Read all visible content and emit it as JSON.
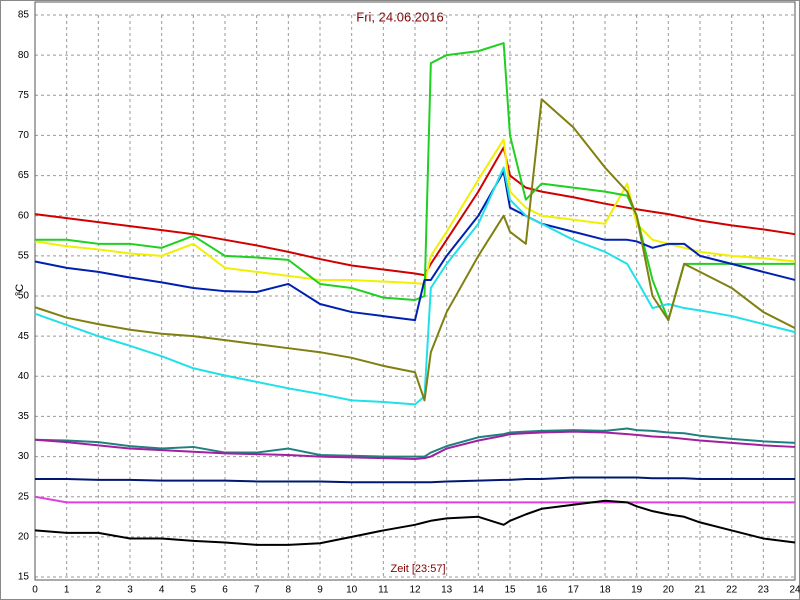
{
  "chart_data": {
    "type": "line",
    "title": "Fri, 24.06.2016",
    "xlabel": "Zeit [23:57]",
    "ylabel": "°C",
    "xlim": [
      0,
      24
    ],
    "ylim": [
      15,
      85
    ],
    "xticks": [
      0,
      1,
      2,
      3,
      4,
      5,
      6,
      7,
      8,
      9,
      10,
      11,
      12,
      13,
      14,
      15,
      16,
      17,
      18,
      19,
      20,
      21,
      22,
      23,
      24
    ],
    "yticks": [
      15,
      20,
      25,
      30,
      35,
      40,
      45,
      50,
      55,
      60,
      65,
      70,
      75,
      80,
      85
    ],
    "grid": true,
    "x": [
      0,
      1,
      2,
      3,
      4,
      5,
      6,
      7,
      8,
      9,
      10,
      11,
      12,
      12.3,
      12.5,
      13,
      14,
      14.8,
      15,
      15.5,
      16,
      17,
      18,
      18.7,
      19,
      19.5,
      20,
      20.5,
      21,
      22,
      23,
      24
    ],
    "series": [
      {
        "color": "#d00000",
        "values": [
          60.2,
          59.7,
          59.2,
          58.7,
          58.2,
          57.7,
          57,
          56.3,
          55.5,
          54.6,
          53.8,
          53.3,
          52.8,
          52.6,
          54,
          57,
          63,
          68.5,
          65,
          63.5,
          63,
          62.3,
          61.5,
          61,
          60.8,
          60.5,
          60.2,
          59.8,
          59.4,
          58.8,
          58.3,
          57.7
        ]
      },
      {
        "color": "#f0f000",
        "values": [
          56.8,
          56.2,
          55.8,
          55.3,
          55,
          56.5,
          53.5,
          53,
          52.5,
          52,
          52,
          51.8,
          51.6,
          51.5,
          55,
          58,
          64.5,
          69.5,
          63,
          61,
          60,
          59.5,
          59,
          64,
          59,
          57,
          56.5,
          56,
          55.5,
          55,
          54.7,
          54.3
        ]
      },
      {
        "color": "#20d020",
        "values": [
          57,
          57,
          56.5,
          56.5,
          56,
          57.5,
          55,
          54.8,
          54.5,
          51.5,
          51,
          49.8,
          49.5,
          50,
          79,
          80,
          80.5,
          81.5,
          70,
          62,
          64,
          63.5,
          63,
          62.5,
          60,
          52,
          47,
          54,
          54,
          54,
          54,
          54
        ]
      },
      {
        "color": "#0020b0",
        "values": [
          54.3,
          53.5,
          53,
          52.3,
          51.7,
          51,
          50.6,
          50.5,
          51.5,
          49,
          48,
          47.5,
          47,
          52,
          52,
          55,
          60,
          65.5,
          61,
          60,
          59,
          58,
          57,
          57,
          56.8,
          56,
          56.5,
          56.5,
          55,
          54,
          53,
          52
        ]
      },
      {
        "color": "#20e0e8",
        "values": [
          47.8,
          46.4,
          45,
          43.8,
          42.5,
          41,
          40.1,
          39.3,
          38.5,
          37.8,
          37,
          36.8,
          36.5,
          37.5,
          51,
          54,
          59,
          66,
          62,
          60,
          59,
          57,
          55.5,
          54,
          52,
          48.5,
          49,
          48.5,
          48.2,
          47.5,
          46.5,
          45.5
        ]
      },
      {
        "color": "#808010",
        "values": [
          48.6,
          47.3,
          46.5,
          45.8,
          45.3,
          45,
          44.5,
          44,
          43.5,
          43,
          42.3,
          41.3,
          40.5,
          37,
          43,
          48,
          55,
          60,
          58,
          56.5,
          74.5,
          71,
          66,
          63,
          60,
          50,
          47,
          54,
          53,
          51,
          48,
          46
        ]
      },
      {
        "color": "#208080",
        "values": [
          32.1,
          32,
          31.8,
          31.3,
          31,
          31.2,
          30.5,
          30.5,
          31,
          30.2,
          30.1,
          30,
          30,
          30,
          30.5,
          31.3,
          32.4,
          32.8,
          33,
          33.1,
          33.2,
          33.3,
          33.2,
          33.5,
          33.3,
          33.2,
          33,
          32.9,
          32.6,
          32.2,
          31.9,
          31.7
        ]
      },
      {
        "color": "#a020a0",
        "values": [
          32.1,
          31.8,
          31.4,
          31,
          30.8,
          30.6,
          30.4,
          30.3,
          30.2,
          30,
          29.9,
          29.8,
          29.7,
          29.8,
          30,
          31,
          32,
          32.6,
          32.8,
          32.9,
          33,
          33.1,
          33,
          32.8,
          32.7,
          32.5,
          32.4,
          32.2,
          32,
          31.7,
          31.4,
          31.2
        ]
      },
      {
        "color": "#001870",
        "values": [
          27.2,
          27.2,
          27.1,
          27.1,
          27,
          27,
          27,
          26.9,
          26.9,
          26.9,
          26.8,
          26.8,
          26.8,
          26.8,
          26.8,
          26.9,
          27,
          27.1,
          27.1,
          27.2,
          27.2,
          27.4,
          27.4,
          27.4,
          27.4,
          27.3,
          27.3,
          27.3,
          27.2,
          27.2,
          27.2,
          27.2
        ]
      },
      {
        "color": "#e040e0",
        "values": [
          25,
          24.3,
          24.3,
          24.3,
          24.3,
          24.3,
          24.3,
          24.3,
          24.3,
          24.3,
          24.3,
          24.3,
          24.3,
          24.3,
          24.3,
          24.3,
          24.3,
          24.3,
          24.3,
          24.3,
          24.3,
          24.3,
          24.3,
          24.3,
          24.3,
          24.3,
          24.3,
          24.3,
          24.3,
          24.3,
          24.3,
          24.3
        ]
      },
      {
        "color": "#000000",
        "values": [
          20.8,
          20.5,
          20.5,
          19.8,
          19.8,
          19.5,
          19.3,
          19,
          19,
          19.2,
          20,
          20.8,
          21.5,
          21.8,
          22,
          22.3,
          22.5,
          21.5,
          22,
          22.8,
          23.5,
          24,
          24.5,
          24.3,
          23.8,
          23.2,
          22.8,
          22.5,
          21.8,
          20.8,
          19.8,
          19.3
        ]
      }
    ]
  }
}
